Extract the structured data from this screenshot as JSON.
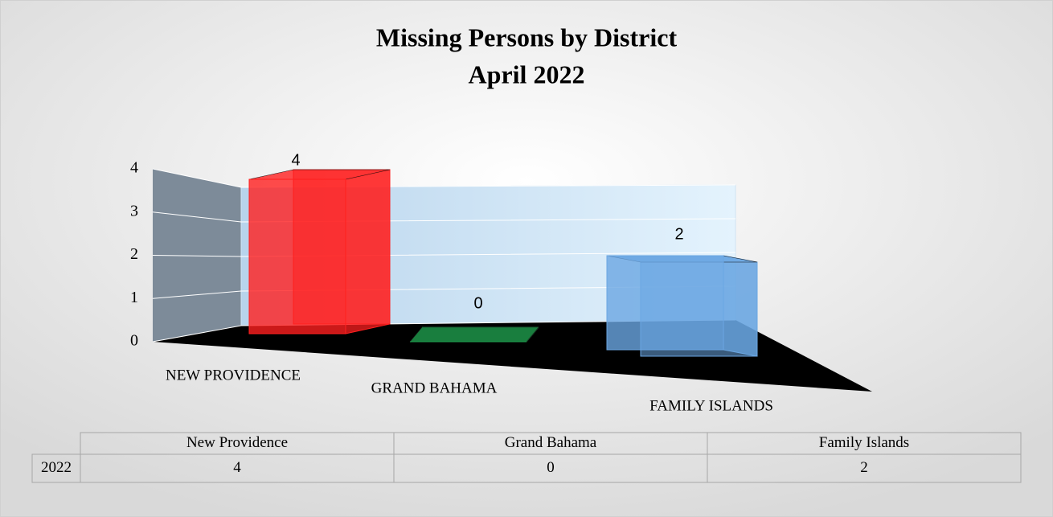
{
  "chart_data": {
    "type": "bar3d",
    "title": "Missing Persons by District",
    "subtitle": "April 2022",
    "categories": [
      "NEW PROVIDENCE",
      "GRAND BAHAMA",
      "FAMILY ISLANDS"
    ],
    "values": [
      4,
      0,
      2
    ],
    "colors": [
      "#ff1f1f",
      "#1f9e4e",
      "#6aa6e2"
    ],
    "ylim": [
      0,
      4
    ],
    "yticks": [
      0,
      1,
      2,
      3,
      4
    ],
    "grid": true,
    "table": {
      "row_label": "2022",
      "columns": [
        "New Providence",
        "Grand Bahama",
        "Family Islands"
      ]
    }
  }
}
